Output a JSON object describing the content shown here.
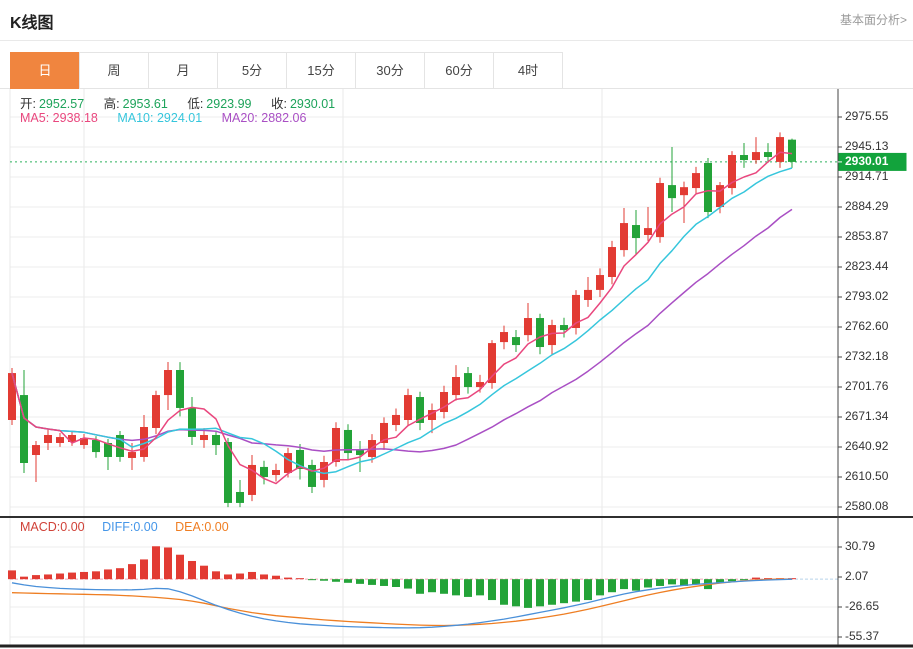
{
  "header": {
    "title": "K线图",
    "link": "基本面分析>"
  },
  "tabs": {
    "items": [
      "日",
      "周",
      "月",
      "5分",
      "15分",
      "30分",
      "60分",
      "4时"
    ],
    "active_index": 0
  },
  "ohlc": {
    "open_label": "开:",
    "open": "2952.57",
    "high_label": "高:",
    "high": "2953.61",
    "low_label": "低:",
    "low": "2923.99",
    "close_label": "收:",
    "close": "2930.01"
  },
  "ma": {
    "ma5_label": "MA5:",
    "ma5": "2938.18",
    "ma10_label": "MA10:",
    "ma10": "2924.01",
    "ma20_label": "MA20:",
    "ma20": "2882.06"
  },
  "macd_legend": {
    "macd": "MACD:0.00",
    "diff": "DIFF:0.00",
    "dea": "DEA:0.00"
  },
  "price_axis": {
    "ticks": [
      "2975.55",
      "2945.13",
      "2914.71",
      "2884.29",
      "2853.87",
      "2823.44",
      "2793.02",
      "2762.60",
      "2732.18",
      "2701.76",
      "2671.34",
      "2640.92",
      "2610.50",
      "2580.08"
    ],
    "current": "2930.01"
  },
  "macd_axis": {
    "ticks": [
      "30.79",
      "2.07",
      "-26.65",
      "-55.37"
    ]
  },
  "colors": {
    "up": "#e23b33",
    "down": "#23a338",
    "ma5": "#e9477e",
    "ma10": "#36c6dc",
    "ma20": "#a94fc4",
    "tab_accent": "#f0853f",
    "value_green": "#1da35a",
    "badge_bg": "#12a33c",
    "diff_line": "#4a90d9",
    "dea_line": "#ee7e23",
    "grid": "#ededed",
    "grid_v": "#e8e8e8",
    "axis_line": "#444444",
    "tick_text": "#333333",
    "dark_divider": "#2f2f2f",
    "current_dotted": "#2db25e",
    "zero_dash_pink": "#f2a6b8",
    "zero_dash_blue": "#b8d3ea",
    "left_border": "#e8e8e8"
  },
  "chart_data": {
    "type": "candlestick",
    "title": "K线图 (日)",
    "main": {
      "ylim": [
        2569.9,
        3003.9
      ],
      "yticks": [
        2975.55,
        2945.13,
        2914.71,
        2884.29,
        2853.87,
        2823.44,
        2793.02,
        2762.6,
        2732.18,
        2701.76,
        2671.34,
        2640.92,
        2610.5,
        2580.08
      ],
      "current_price": 2930.01,
      "last_candle": {
        "open": 2952.57,
        "high": 2953.61,
        "low": 2923.99,
        "close": 2930.01
      },
      "ma_values": {
        "ma5": 2938.18,
        "ma10": 2924.01,
        "ma20": 2882.06
      },
      "ma_windows": {
        "ma5": 5,
        "ma10": 10,
        "ma20": 20
      },
      "candles_ohlc": [
        [
          2668.3,
          2721.0,
          2663.2,
          2715.9
        ],
        [
          2693.6,
          2719.0,
          2614.6,
          2624.7
        ],
        [
          2632.8,
          2647.0,
          2605.4,
          2642.9
        ],
        [
          2645.0,
          2658.2,
          2637.9,
          2653.1
        ],
        [
          2645.0,
          2655.1,
          2641.0,
          2651.0
        ],
        [
          2646.0,
          2657.1,
          2642.0,
          2653.1
        ],
        [
          2642.9,
          2654.1,
          2639.0,
          2650.0
        ],
        [
          2648.0,
          2652.0,
          2630.0,
          2635.8
        ],
        [
          2645.0,
          2649.0,
          2617.6,
          2630.8
        ],
        [
          2653.1,
          2657.1,
          2626.0,
          2630.8
        ],
        [
          2629.8,
          2645.0,
          2617.6,
          2635.8
        ],
        [
          2630.8,
          2673.4,
          2626.0,
          2661.2
        ],
        [
          2660.2,
          2698.0,
          2654.0,
          2693.6
        ],
        [
          2693.6,
          2727.1,
          2678.4,
          2719.0
        ],
        [
          2719.0,
          2727.0,
          2672.0,
          2680.5
        ],
        [
          2680.5,
          2691.6,
          2643.0,
          2651.1
        ],
        [
          2648.0,
          2660.1,
          2640.0,
          2653.1
        ],
        [
          2653.1,
          2657.1,
          2632.8,
          2642.9
        ],
        [
          2646.0,
          2650.0,
          2580.0,
          2584.2
        ],
        [
          2595.3,
          2607.5,
          2580.0,
          2584.2
        ],
        [
          2592.3,
          2632.8,
          2586.0,
          2622.7
        ],
        [
          2620.7,
          2627.0,
          2603.0,
          2610.5
        ],
        [
          2612.5,
          2624.0,
          2606.0,
          2617.6
        ],
        [
          2614.6,
          2640.0,
          2610.0,
          2634.8
        ],
        [
          2637.9,
          2644.0,
          2608.0,
          2618.6
        ],
        [
          2622.7,
          2628.0,
          2594.3,
          2600.4
        ],
        [
          2607.5,
          2632.0,
          2600.0,
          2625.7
        ],
        [
          2625.7,
          2666.0,
          2621.0,
          2660.2
        ],
        [
          2658.2,
          2664.0,
          2628.0,
          2634.8
        ],
        [
          2638.9,
          2647.0,
          2615.6,
          2632.8
        ],
        [
          2630.8,
          2654.0,
          2625.0,
          2648.0
        ],
        [
          2645.0,
          2671.0,
          2638.0,
          2665.3
        ],
        [
          2663.2,
          2680.0,
          2657.0,
          2673.4
        ],
        [
          2668.3,
          2700.0,
          2662.0,
          2693.6
        ],
        [
          2691.6,
          2697.0,
          2658.0,
          2665.3
        ],
        [
          2668.3,
          2685.0,
          2655.0,
          2678.4
        ],
        [
          2676.4,
          2703.0,
          2670.0,
          2696.7
        ],
        [
          2693.6,
          2724.0,
          2688.0,
          2711.9
        ],
        [
          2715.9,
          2722.0,
          2695.0,
          2701.7
        ],
        [
          2701.7,
          2714.0,
          2696.0,
          2706.8
        ],
        [
          2705.8,
          2749.3,
          2700.0,
          2746.3
        ],
        [
          2747.3,
          2764.0,
          2740.0,
          2757.5
        ],
        [
          2752.4,
          2759.5,
          2737.2,
          2744.3
        ],
        [
          2754.4,
          2786.9,
          2748.0,
          2771.7
        ],
        [
          2771.7,
          2776.0,
          2735.0,
          2742.3
        ],
        [
          2744.3,
          2770.0,
          2734.2,
          2764.6
        ],
        [
          2764.6,
          2772.0,
          2752.0,
          2759.5
        ],
        [
          2761.6,
          2800.0,
          2755.0,
          2795.1
        ],
        [
          2790.0,
          2813.3,
          2783.0,
          2800.2
        ],
        [
          2800.2,
          2822.0,
          2793.0,
          2815.3
        ],
        [
          2813.3,
          2850.0,
          2806.0,
          2843.7
        ],
        [
          2840.6,
          2883.3,
          2834.0,
          2868.0
        ],
        [
          2866.0,
          2881.2,
          2835.6,
          2852.8
        ],
        [
          2855.9,
          2884.3,
          2850.0,
          2862.9
        ],
        [
          2853.8,
          2914.0,
          2848.0,
          2908.6
        ],
        [
          2906.5,
          2945.1,
          2879.2,
          2893.3
        ],
        [
          2896.3,
          2910.0,
          2868.0,
          2904.4
        ],
        [
          2903.5,
          2925.0,
          2897.0,
          2918.7
        ],
        [
          2928.9,
          2934.0,
          2873.0,
          2879.2
        ],
        [
          2884.3,
          2909.6,
          2878.0,
          2906.5
        ],
        [
          2903.5,
          2941.0,
          2897.0,
          2937.0
        ],
        [
          2937.0,
          2949.2,
          2923.9,
          2931.9
        ],
        [
          2931.9,
          2955.2,
          2928.0,
          2940.0
        ],
        [
          2940.0,
          2949.0,
          2929.0,
          2935.0
        ],
        [
          2930.0,
          2960.0,
          2924.0,
          2955.2
        ],
        [
          2952.57,
          2953.61,
          2923.99,
          2930.01
        ]
      ]
    },
    "macd": {
      "yticks": [
        30.79,
        2.07,
        -26.65,
        -55.37
      ],
      "latest": {
        "macd": 0.0,
        "diff": 0.0,
        "dea": 0.0
      },
      "histogram": [
        8.4,
        2.4,
        3.9,
        4.5,
        5.4,
        6.3,
        6.9,
        7.5,
        9.3,
        10.5,
        14.4,
        18.9,
        31.5,
        30.3,
        23.4,
        17.4,
        12.9,
        7.5,
        4.5,
        5.4,
        6.9,
        4.5,
        3.3,
        1.5,
        0.5,
        -0.8,
        -1.5,
        -2.5,
        -3.5,
        -4.5,
        -5.5,
        -6.5,
        -7.5,
        -9,
        -14,
        -12.5,
        -14,
        -15.5,
        -17,
        -15.5,
        -20,
        -24.5,
        -26,
        -27.5,
        -26,
        -24.5,
        -23,
        -21.5,
        -20,
        -15.5,
        -12.5,
        -9.5,
        -11,
        -8,
        -6.5,
        -5,
        -6.5,
        -5,
        -9.5,
        -3.5,
        -2,
        -1,
        1.5,
        1,
        0.5,
        0
      ],
      "diff": [
        -3.5,
        -5.5,
        -7,
        -8,
        -8.8,
        -9.3,
        -9.7,
        -10,
        -10.2,
        -10.3,
        -10.2,
        -9.8,
        -8.8,
        -9.2,
        -12,
        -16,
        -20.5,
        -25,
        -29,
        -32.5,
        -35.5,
        -38,
        -40,
        -41.5,
        -42.7,
        -43.6,
        -44.3,
        -44.9,
        -45.4,
        -45.8,
        -46.1,
        -46.4,
        -46.6,
        -46.7,
        -46.5,
        -46,
        -45.2,
        -44.2,
        -43,
        -41.6,
        -40,
        -38.2,
        -36.2,
        -34,
        -31.8,
        -29.6,
        -27.4,
        -25,
        -22.4,
        -19.6,
        -16.8,
        -14.2,
        -12,
        -10.2,
        -8.6,
        -7.2,
        -6,
        -5,
        -4.2,
        -3.4,
        -2.6,
        -1.9,
        -1.3,
        -0.8,
        -0.4,
        0
      ],
      "dea": [
        -13,
        -13.2,
        -13.5,
        -13.8,
        -14,
        -14.3,
        -14.5,
        -14.8,
        -15,
        -15.5,
        -16,
        -16.7,
        -17.5,
        -18.4,
        -19.5,
        -21,
        -23,
        -25.5,
        -28,
        -30,
        -32,
        -33.5,
        -35,
        -36,
        -37,
        -38,
        -39,
        -39.8,
        -40.5,
        -41.2,
        -41.8,
        -42.4,
        -43,
        -43.5,
        -44,
        -44.3,
        -44.4,
        -44.2,
        -43.8,
        -43.2,
        -42.4,
        -41.4,
        -40.2,
        -38.8,
        -37.2,
        -35.4,
        -33.4,
        -31.2,
        -28.8,
        -26.2,
        -23.4,
        -20.6,
        -17.8,
        -15.2,
        -12.8,
        -10.6,
        -8.6,
        -6.8,
        -5.2,
        -3.8,
        -2.6,
        -1.6,
        -0.8,
        -0.2,
        0.2,
        0
      ]
    }
  }
}
